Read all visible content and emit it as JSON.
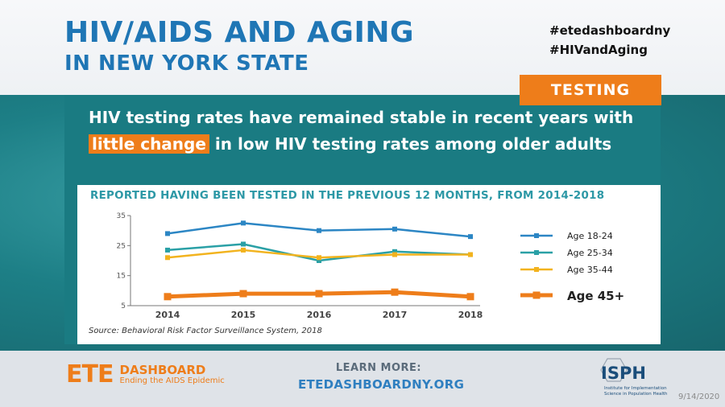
{
  "header": {
    "title_line1": "HIV/AIDS AND AGING",
    "title_line2": "IN NEW YORK STATE",
    "hashtag1": "#etedashboardny",
    "hashtag2": "#HIVandAging"
  },
  "tag": "TESTING",
  "headline": {
    "part1": "HIV testing rates have remained stable in recent years with ",
    "highlight": "little change",
    "part2": " in low HIV testing rates among older adults"
  },
  "chart_data": {
    "type": "line",
    "title": "REPORTED HAVING BEEN TESTED IN THE PREVIOUS 12 MONTHS, FROM 2014-2018",
    "x": [
      "2014",
      "2015",
      "2016",
      "2017",
      "2018"
    ],
    "yticks": [
      5,
      15,
      25,
      35
    ],
    "ylim": [
      5,
      35
    ],
    "grid": false,
    "legend_position": "right",
    "series": [
      {
        "name": "Age 18-24",
        "color": "#2c86c4",
        "values": [
          29,
          32.5,
          30,
          30.5,
          28
        ]
      },
      {
        "name": "Age 25-34",
        "color": "#2aa0a6",
        "values": [
          23.5,
          25.5,
          20,
          23,
          22
        ]
      },
      {
        "name": "Age 35-44",
        "color": "#f2b31e",
        "values": [
          21,
          23.5,
          21,
          22,
          22
        ]
      },
      {
        "name": "Age 45+",
        "color": "#ee7d1a",
        "values": [
          8,
          9,
          9,
          9.5,
          8
        ],
        "emphasis": true
      }
    ],
    "source": "Source: Behavioral Risk Factor Surveillance System, 2018"
  },
  "footer": {
    "logo_big": "ETE",
    "logo_word": "DASHBOARD",
    "logo_sub": "Ending the AIDS Epidemic",
    "learn_label": "LEARN MORE:",
    "learn_url": "ETEDASHBOARDNY.ORG",
    "isph_name": "ISPH",
    "isph_sub": "Institute for Implementation Science in Population Health",
    "date": "9/14/2020"
  }
}
